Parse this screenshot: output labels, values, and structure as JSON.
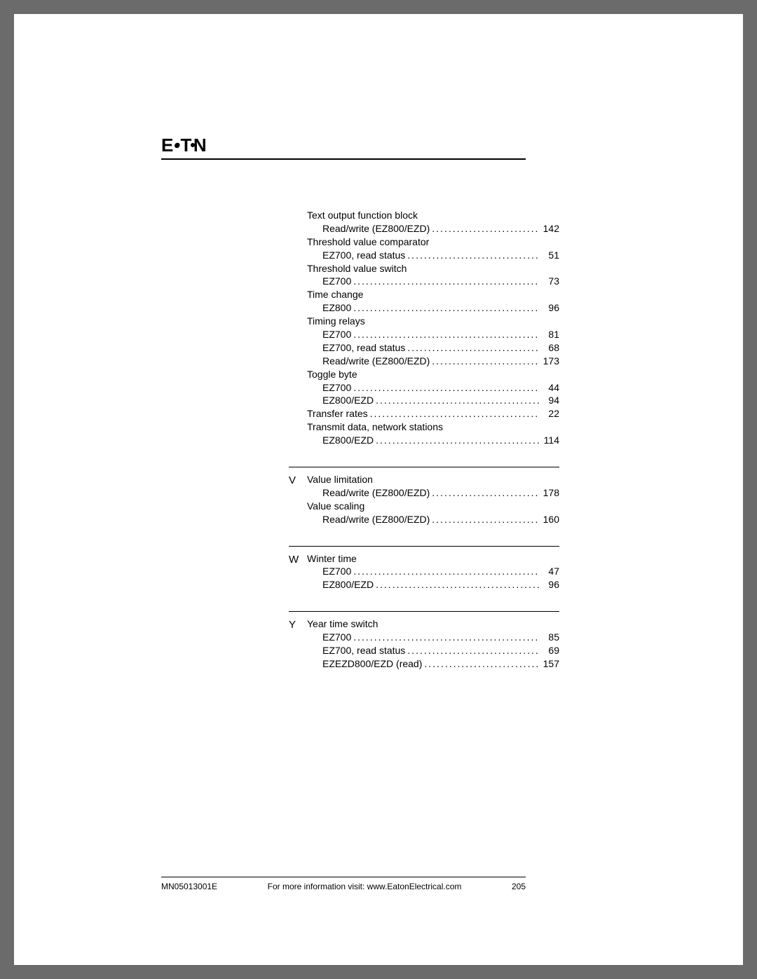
{
  "logo_text": "E:T·N",
  "footer": {
    "doc_id": "MN05013001E",
    "info": "For more information visit: www.EatonElectrical.com",
    "page": "205"
  },
  "sections": [
    {
      "letter": "",
      "rule": false,
      "items": [
        {
          "topic": "Text output function block",
          "subs": [
            {
              "label": "Read/write (EZ800/EZD)",
              "page": "142"
            }
          ]
        },
        {
          "topic": "Threshold value comparator",
          "subs": [
            {
              "label": "EZ700, read status",
              "page": "51"
            }
          ]
        },
        {
          "topic": "Threshold value switch",
          "subs": [
            {
              "label": "EZ700",
              "page": "73"
            }
          ]
        },
        {
          "topic": "Time change",
          "subs": [
            {
              "label": "EZ800",
              "page": "96"
            }
          ]
        },
        {
          "topic": "Timing relays",
          "subs": [
            {
              "label": "EZ700",
              "page": "81"
            },
            {
              "label": "EZ700, read status",
              "page": "68"
            },
            {
              "label": "Read/write (EZ800/EZD)",
              "page": "173"
            }
          ]
        },
        {
          "topic": "Toggle byte",
          "subs": [
            {
              "label": "EZ700",
              "page": "44"
            },
            {
              "label": "EZ800/EZD",
              "page": "94"
            }
          ]
        },
        {
          "topic_inline": true,
          "topic": "Transfer rates",
          "page": "22"
        },
        {
          "topic": "Transmit data, network stations",
          "subs": [
            {
              "label": "EZ800/EZD",
              "page": "114"
            }
          ]
        }
      ]
    },
    {
      "letter": "V",
      "rule": true,
      "items": [
        {
          "topic": "Value limitation",
          "subs": [
            {
              "label": "Read/write (EZ800/EZD)",
              "page": "178"
            }
          ]
        },
        {
          "topic": "Value scaling",
          "subs": [
            {
              "label": "Read/write (EZ800/EZD)",
              "page": "160"
            }
          ]
        }
      ]
    },
    {
      "letter": "W",
      "rule": true,
      "items": [
        {
          "topic": "Winter time",
          "subs": [
            {
              "label": "EZ700",
              "page": "47"
            },
            {
              "label": "EZ800/EZD",
              "page": "96"
            }
          ]
        }
      ]
    },
    {
      "letter": "Y",
      "rule": true,
      "items": [
        {
          "topic": "Year time switch",
          "subs": [
            {
              "label": "EZ700",
              "page": "85"
            },
            {
              "label": "EZ700, read status",
              "page": "69"
            },
            {
              "label": "EZEZD800/EZD (read)",
              "page": "157"
            }
          ]
        }
      ]
    }
  ]
}
